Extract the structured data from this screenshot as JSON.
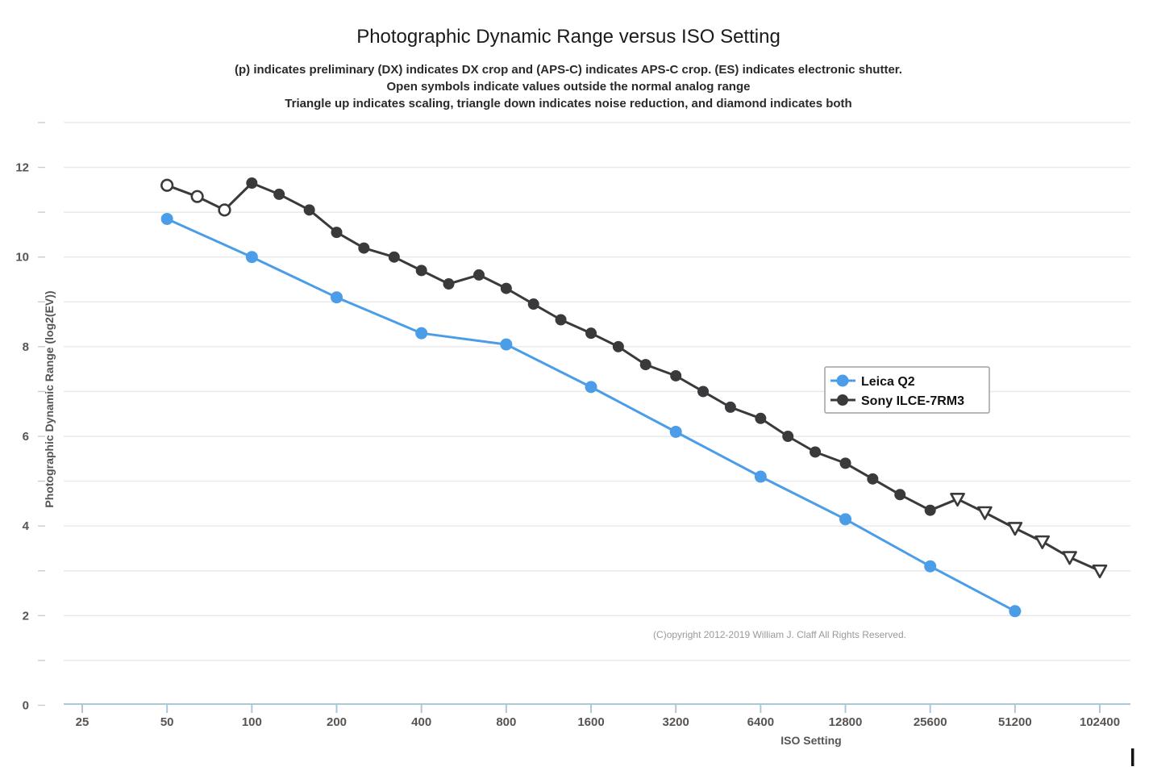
{
  "header": {
    "title": "Photographic Dynamic Range versus ISO Setting",
    "subtitle_lines": [
      "(p) indicates preliminary (DX) indicates DX crop and (APS-C) indicates APS-C crop. (ES) indicates electronic shutter.",
      "Open symbols indicate values outside the normal analog range",
      "Triangle up indicates scaling, triangle down indicates noise reduction, and diamond indicates both"
    ]
  },
  "chart_data": {
    "type": "line",
    "title": "Photographic Dynamic Range versus ISO Setting",
    "x_axis": {
      "label": "ISO Setting",
      "scale": "log2",
      "ticks": [
        25,
        50,
        100,
        200,
        400,
        800,
        1600,
        3200,
        6400,
        12800,
        25600,
        51200,
        102400
      ]
    },
    "y_axis": {
      "label": "Photographic Dynamic Range (log2(EV))",
      "tick_labels": [
        0,
        2,
        4,
        6,
        8,
        10,
        12
      ],
      "ylim": [
        0,
        13
      ],
      "gridlines_every_ev": 1
    },
    "legend_position": "middle-right",
    "grid": true,
    "marker_notes": "open symbols = outside normal analog range; open triangle-down = noise reduction",
    "series": [
      {
        "name": "Leica Q2",
        "color": "#4b9de8",
        "points": [
          {
            "iso": 50,
            "pdr": 10.85,
            "marker": "circle"
          },
          {
            "iso": 100,
            "pdr": 10.0,
            "marker": "circle"
          },
          {
            "iso": 200,
            "pdr": 9.1,
            "marker": "circle"
          },
          {
            "iso": 400,
            "pdr": 8.3,
            "marker": "circle"
          },
          {
            "iso": 800,
            "pdr": 8.05,
            "marker": "circle"
          },
          {
            "iso": 1600,
            "pdr": 7.1,
            "marker": "circle"
          },
          {
            "iso": 3200,
            "pdr": 6.1,
            "marker": "circle"
          },
          {
            "iso": 6400,
            "pdr": 5.1,
            "marker": "circle"
          },
          {
            "iso": 12800,
            "pdr": 4.15,
            "marker": "circle"
          },
          {
            "iso": 25600,
            "pdr": 3.1,
            "marker": "circle"
          },
          {
            "iso": 51200,
            "pdr": 2.1,
            "marker": "circle"
          }
        ]
      },
      {
        "name": "Sony ILCE-7RM3",
        "color": "#3a3a3d",
        "points": [
          {
            "iso": 50,
            "pdr": 11.6,
            "marker": "circle-open"
          },
          {
            "iso": 64,
            "pdr": 11.35,
            "marker": "circle-open"
          },
          {
            "iso": 80,
            "pdr": 11.05,
            "marker": "circle-open"
          },
          {
            "iso": 100,
            "pdr": 11.65,
            "marker": "circle"
          },
          {
            "iso": 125,
            "pdr": 11.4,
            "marker": "circle"
          },
          {
            "iso": 160,
            "pdr": 11.05,
            "marker": "circle"
          },
          {
            "iso": 200,
            "pdr": 10.55,
            "marker": "circle"
          },
          {
            "iso": 250,
            "pdr": 10.2,
            "marker": "circle"
          },
          {
            "iso": 320,
            "pdr": 10.0,
            "marker": "circle"
          },
          {
            "iso": 400,
            "pdr": 9.7,
            "marker": "circle"
          },
          {
            "iso": 500,
            "pdr": 9.4,
            "marker": "circle"
          },
          {
            "iso": 640,
            "pdr": 9.6,
            "marker": "circle"
          },
          {
            "iso": 800,
            "pdr": 9.3,
            "marker": "circle"
          },
          {
            "iso": 1000,
            "pdr": 8.95,
            "marker": "circle"
          },
          {
            "iso": 1250,
            "pdr": 8.6,
            "marker": "circle"
          },
          {
            "iso": 1600,
            "pdr": 8.3,
            "marker": "circle"
          },
          {
            "iso": 2000,
            "pdr": 8.0,
            "marker": "circle"
          },
          {
            "iso": 2500,
            "pdr": 7.6,
            "marker": "circle"
          },
          {
            "iso": 3200,
            "pdr": 7.35,
            "marker": "circle"
          },
          {
            "iso": 4000,
            "pdr": 7.0,
            "marker": "circle"
          },
          {
            "iso": 5000,
            "pdr": 6.65,
            "marker": "circle"
          },
          {
            "iso": 6400,
            "pdr": 6.4,
            "marker": "circle"
          },
          {
            "iso": 8000,
            "pdr": 6.0,
            "marker": "circle"
          },
          {
            "iso": 10000,
            "pdr": 5.65,
            "marker": "circle"
          },
          {
            "iso": 12800,
            "pdr": 5.4,
            "marker": "circle"
          },
          {
            "iso": 16000,
            "pdr": 5.05,
            "marker": "circle"
          },
          {
            "iso": 20000,
            "pdr": 4.7,
            "marker": "circle"
          },
          {
            "iso": 25600,
            "pdr": 4.35,
            "marker": "circle"
          },
          {
            "iso": 32000,
            "pdr": 4.6,
            "marker": "triangle-down-open"
          },
          {
            "iso": 40000,
            "pdr": 4.3,
            "marker": "triangle-down-open"
          },
          {
            "iso": 51200,
            "pdr": 3.95,
            "marker": "triangle-down-open"
          },
          {
            "iso": 64000,
            "pdr": 3.65,
            "marker": "triangle-down-open"
          },
          {
            "iso": 80000,
            "pdr": 3.3,
            "marker": "triangle-down-open"
          },
          {
            "iso": 102400,
            "pdr": 3.0,
            "marker": "triangle-down-open"
          }
        ]
      }
    ]
  },
  "colors": {
    "leica_blue": "#4b9de8",
    "sony_black": "#3a3a3d",
    "gridline": "#e8e8e8",
    "axis_line": "#aac8da",
    "tick_dash": "#cccccc",
    "legend_border": "#a0a0a0"
  },
  "footer": {
    "copyright": "(C)opyright 2012-2019 William J. Claff All Rights Reserved."
  }
}
